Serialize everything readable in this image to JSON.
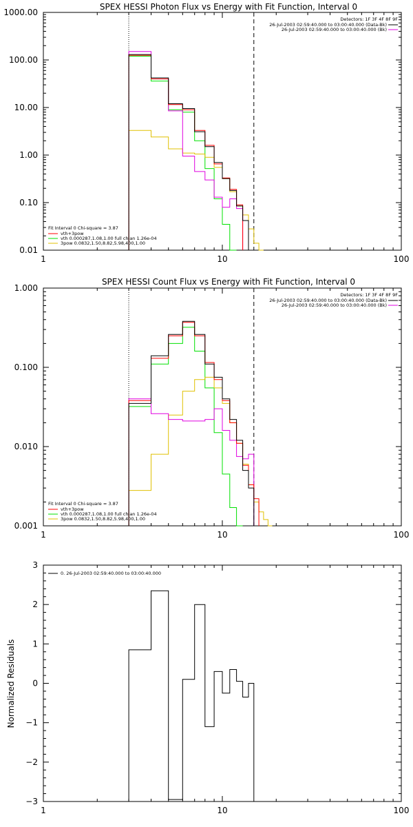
{
  "chart_data": [
    {
      "type": "line",
      "title": "SPEX HESSI Photon Flux vs Energy with Fit Function, Interval 0",
      "xlabel": "",
      "ylabel": "",
      "xscale": "log",
      "yscale": "log",
      "xlim": [
        1,
        100
      ],
      "ylim": [
        0.01,
        1000
      ],
      "x_tick_labels": [
        "1",
        "10",
        "100"
      ],
      "y_tick_labels": [
        "0.01",
        "0.10",
        "1.00",
        "10.00",
        "100.00",
        "1000.00"
      ],
      "vlines": [
        {
          "x": 3,
          "style": "dotted"
        },
        {
          "x": 15,
          "style": "dashed"
        }
      ],
      "edges": [
        3,
        4,
        5,
        6,
        7,
        8,
        9,
        10,
        11,
        12,
        13,
        14,
        15,
        16,
        17,
        18
      ],
      "legend_tr": [
        "Detectors: 1F 3F 4F 8F 9F",
        "26-Jul-2003 02:59:40.000 to 03:00:40.000 (Data-Bk)",
        "26-Jul-2003 02:59:40.000 to 03:00:40.000 (Bk)"
      ],
      "legend_bl": [
        "Fit Interval 0   Chi-square = 3.87",
        "vth+3pow",
        "vth 0.000287,1.08,1.00   full chian 1.26e-04",
        "3pow 0.0832,1.50,8.82,5.98,400,1.00"
      ],
      "series": [
        {
          "name": "26-Jul-2003 02:59:40.000 to 03:00:40.000 (Data-Bk)",
          "color": "#000000",
          "values": [
            130,
            42,
            12,
            9.5,
            3.1,
            1.5,
            0.7,
            0.32,
            0.18,
            0.085,
            0.042,
            null,
            null,
            null,
            null
          ]
        },
        {
          "name": "vth+3pow",
          "color": "#ff0000",
          "values": [
            125,
            40,
            11.5,
            9,
            3.3,
            1.6,
            0.65,
            0.33,
            0.19,
            0.09,
            null,
            null,
            null,
            null,
            null
          ]
        },
        {
          "name": "vth",
          "color": "#00e000",
          "values": [
            120,
            36,
            9,
            8,
            2,
            0.52,
            0.12,
            0.035,
            0.01,
            null,
            null,
            null,
            null,
            null,
            null
          ]
        },
        {
          "name": "3pow",
          "color": "#e0c000",
          "values": [
            3.3,
            2.4,
            1.35,
            1.1,
            1.05,
            0.9,
            0.55,
            0.32,
            0.17,
            0.085,
            0.055,
            0.028,
            0.014,
            0.01,
            null
          ]
        },
        {
          "name": "26-Jul-2003 02:59:40.000 to 03:00:40.000 (Bk)",
          "color": "#e000e0",
          "values": [
            150,
            40,
            8.5,
            0.95,
            0.45,
            0.3,
            0.13,
            0.08,
            0.12,
            0.075,
            null,
            null,
            null,
            null,
            null
          ]
        }
      ]
    },
    {
      "type": "line",
      "title": "SPEX HESSI Count Flux vs Energy with Fit Function, Interval 0",
      "xlabel": "",
      "ylabel": "",
      "xscale": "log",
      "yscale": "log",
      "xlim": [
        1,
        100
      ],
      "ylim": [
        0.001,
        1
      ],
      "x_tick_labels": [
        "1",
        "10",
        "100"
      ],
      "y_tick_labels": [
        "0.001",
        "0.010",
        "0.100",
        "1.000"
      ],
      "vlines": [
        {
          "x": 3,
          "style": "dotted"
        },
        {
          "x": 15,
          "style": "dashed"
        }
      ],
      "edges": [
        3,
        4,
        5,
        6,
        7,
        8,
        9,
        10,
        11,
        12,
        13,
        14,
        15,
        16,
        17,
        18,
        19,
        20
      ],
      "legend_tr": [
        "Detectors: 1F 3F 4F 8F 9F",
        "26-Jul-2003 02:59:40.000 to 03:00:40.000 (Data-Bk)",
        "26-Jul-2003 02:59:40.000 to 03:00:40.000 (Bk)"
      ],
      "legend_bl": [
        "Fit Interval 0   Chi-square = 3.87",
        "vth+3pow",
        "vth 0.000287,1.08,1.00   full chian 1.26e-04",
        "3pow 0.0832,1.50,8.82,5.98,400,1.00"
      ],
      "series": [
        {
          "name": "26-Jul-2003 02:59:40.000 to 03:00:40.000 (Data-Bk)",
          "color": "#000000",
          "values": [
            0.035,
            0.14,
            0.26,
            0.38,
            0.26,
            0.11,
            0.075,
            0.04,
            0.022,
            0.012,
            0.005,
            0.003,
            null,
            null,
            null,
            null,
            null
          ]
        },
        {
          "name": "vth+3pow",
          "color": "#ff0000",
          "values": [
            0.038,
            0.13,
            0.25,
            0.37,
            0.25,
            0.115,
            0.07,
            0.038,
            0.02,
            0.011,
            0.0058,
            0.0033,
            0.0022,
            null,
            null,
            null,
            null
          ]
        },
        {
          "name": "vth",
          "color": "#00e000",
          "values": [
            0.032,
            0.11,
            0.2,
            0.32,
            0.16,
            0.055,
            0.015,
            0.0045,
            0.0017,
            0.001,
            null,
            null,
            null,
            null,
            null,
            null,
            null
          ]
        },
        {
          "name": "3pow",
          "color": "#e0c000",
          "values": [
            0.0028,
            0.008,
            0.025,
            0.05,
            0.07,
            0.075,
            0.055,
            0.035,
            0.02,
            0.011,
            0.006,
            0.0033,
            0.002,
            0.0015,
            0.0012,
            0.001,
            null
          ]
        },
        {
          "name": "26-Jul-2003 02:59:40.000 to 03:00:40.000 (Bk)",
          "color": "#e000e0",
          "values": [
            0.04,
            0.026,
            0.022,
            0.021,
            0.021,
            0.022,
            0.03,
            0.016,
            0.012,
            0.0075,
            0.007,
            0.008,
            null,
            null,
            null,
            null,
            null
          ]
        }
      ]
    },
    {
      "type": "line",
      "title": "",
      "xlabel": "",
      "ylabel": "Normalized Residuals",
      "xscale": "log",
      "yscale": "linear",
      "xlim": [
        1,
        100
      ],
      "ylim": [
        -3,
        3
      ],
      "x_tick_labels": [
        "1",
        "10",
        "100"
      ],
      "y_tick_labels": [
        "−3",
        "−2",
        "−1",
        "0",
        "1",
        "2",
        "3"
      ],
      "legend": [
        "0. 26-Jul-2003 02:59:40.000 to 03:00:40.000"
      ],
      "edges": [
        3,
        4,
        5,
        6,
        7,
        8,
        9,
        10,
        11,
        12,
        13,
        14,
        15
      ],
      "values": [
        0.85,
        2.35,
        -2.95,
        0.1,
        2.0,
        -1.1,
        0.3,
        -0.25,
        0.35,
        0.05,
        -0.35,
        0.0
      ]
    }
  ]
}
